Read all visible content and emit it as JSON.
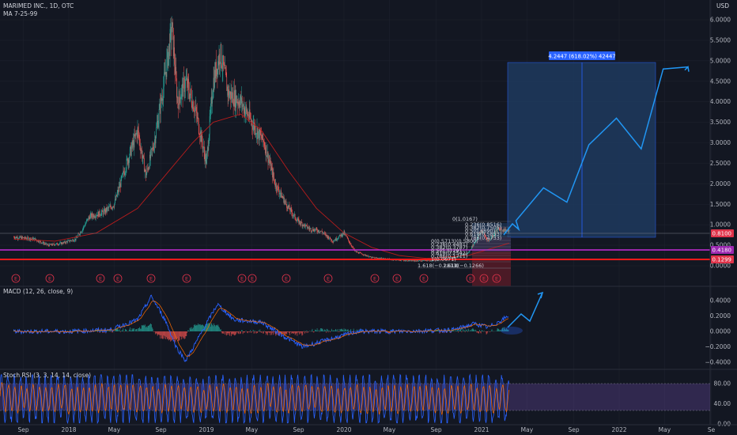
{
  "header": {
    "symbol_line": "MARIMED INC., 1D, OTC",
    "ma_line": "MA 7-25-99"
  },
  "currency": "USD",
  "panes": {
    "macd_label": "MACD (12, 26, close, 9)",
    "stoch_label": "Stoch RSI (3, 3, 14, 14, close)"
  },
  "projection_label": "4.2447 (618.02%) 42447",
  "badges": [
    {
      "text": "0.8100",
      "color": "#e0334a"
    },
    {
      "text": "0.4180",
      "color": "#9c27b0"
    },
    {
      "text": "0.1299",
      "color": "#e0334a"
    }
  ],
  "fib_labels": [
    "0(1.0167)",
    "0.236(0.8516)",
    "0.382(0.7505)",
    "0.5(0.6690)",
    "0.618(0.5853)",
    "0.786(0.4733)",
    "0(0.5713)(0.5800)",
    "0.236(0.4481)",
    "0.382(0.3787)",
    "0.5(0.3129)",
    "0.618(0.2542)",
    "0.786(0.1711)",
    "1(0.0671)",
    "1.618(−0.2813)",
    "1.618(−0.1266)"
  ],
  "events": [
    "E",
    "E",
    "E",
    "E",
    "E",
    "E",
    "E",
    "E",
    "E",
    "E",
    "E",
    "E",
    "E",
    "E",
    "E",
    "E"
  ],
  "chart_data": [
    {
      "type": "line",
      "title": "MARIMED INC., 1D, OTC",
      "ylim": [
        -0.5,
        6.2
      ],
      "y_ticks": [
        "6.0000",
        "5.5000",
        "5.0000",
        "4.5000",
        "4.0000",
        "3.5000",
        "3.0000",
        "2.5000",
        "2.0000",
        "1.5000",
        "1.0000",
        "0.5000",
        "0.0000"
      ],
      "x_ticks": [
        "Sep",
        "2018",
        "May",
        "Sep",
        "2019",
        "May",
        "Sep",
        "2020",
        "May",
        "Sep",
        "2021",
        "May",
        "Sep",
        "2022",
        "May",
        "Se"
      ],
      "series": [
        {
          "name": "close",
          "x": [
            2017.6,
            2017.75,
            2017.85,
            2017.95,
            2018.05,
            2018.1,
            2018.15,
            2018.25,
            2018.33,
            2018.42,
            2018.5,
            2018.56,
            2018.62,
            2018.68,
            2018.75,
            2018.79,
            2018.85,
            2018.92,
            2019.0,
            2019.05,
            2019.1,
            2019.16,
            2019.25,
            2019.33,
            2019.42,
            2019.5,
            2019.58,
            2019.66,
            2019.75,
            2019.83,
            2019.92,
            2020.0,
            2020.08,
            2020.2,
            2020.35,
            2020.5,
            2020.65,
            2020.8,
            2020.9,
            2021.0,
            2021.05,
            2021.12,
            2021.2
          ],
          "values": [
            0.7,
            0.65,
            0.5,
            0.55,
            0.65,
            0.9,
            1.2,
            1.3,
            1.5,
            2.5,
            3.3,
            2.2,
            3.0,
            4.2,
            5.8,
            4.0,
            4.5,
            3.8,
            2.5,
            4.5,
            5.2,
            4.2,
            4.0,
            3.5,
            3.0,
            2.0,
            1.5,
            1.1,
            0.9,
            0.85,
            0.6,
            0.8,
            0.35,
            0.2,
            0.15,
            0.12,
            0.13,
            0.2,
            0.3,
            0.85,
            0.6,
            0.9,
            0.85
          ]
        },
        {
          "name": "MA",
          "x": [
            2017.6,
            2017.9,
            2018.2,
            2018.5,
            2018.75,
            2018.9,
            2019.05,
            2019.25,
            2019.4,
            2019.6,
            2019.8,
            2020.0,
            2020.2,
            2020.4,
            2020.6,
            2020.9,
            2021.2
          ],
          "values": [
            0.65,
            0.6,
            0.8,
            1.4,
            2.4,
            3.0,
            3.5,
            3.7,
            3.3,
            2.3,
            1.4,
            0.8,
            0.45,
            0.25,
            0.18,
            0.25,
            0.55
          ]
        },
        {
          "name": "projection",
          "x": [
            2021.25,
            2021.45,
            2021.62,
            2021.78,
            2021.98,
            2022.16,
            2022.32,
            2022.5
          ],
          "values": [
            1.1,
            1.9,
            1.55,
            2.95,
            3.6,
            2.85,
            4.8,
            4.85
          ]
        }
      ],
      "levels": [
        0.81,
        0.418,
        0.1299
      ]
    },
    {
      "type": "line",
      "title": "MACD (12, 26, close, 9)",
      "ylim": [
        -0.5,
        0.55
      ],
      "y_ticks": [
        "0.4000",
        "0.2000",
        "0.0000",
        "−0.2000",
        "−0.4000"
      ],
      "series": [
        {
          "name": "MACD",
          "x": [
            2017.6,
            2018.0,
            2018.3,
            2018.5,
            2018.6,
            2018.7,
            2018.78,
            2018.85,
            2019.0,
            2019.08,
            2019.2,
            2019.4,
            2019.55,
            2019.7,
            2019.9,
            2020.1,
            2020.4,
            2020.8,
            2020.95,
            2021.05,
            2021.2,
            2021.35,
            2021.45
          ],
          "values": [
            0.0,
            0.0,
            0.02,
            0.15,
            0.45,
            0.15,
            -0.2,
            -0.38,
            0.1,
            0.35,
            0.15,
            0.12,
            -0.05,
            -0.2,
            -0.1,
            0.0,
            0.0,
            0.02,
            0.1,
            0.05,
            0.2,
            0.15,
            0.48
          ]
        }
      ]
    },
    {
      "type": "line",
      "title": "Stoch RSI (3, 3, 14, 14, close)",
      "ylim": [
        0,
        100
      ],
      "y_ticks": [
        "80.00",
        "40.00",
        "0.00"
      ],
      "series": [
        {
          "name": "K",
          "x": [],
          "values": []
        }
      ]
    }
  ]
}
